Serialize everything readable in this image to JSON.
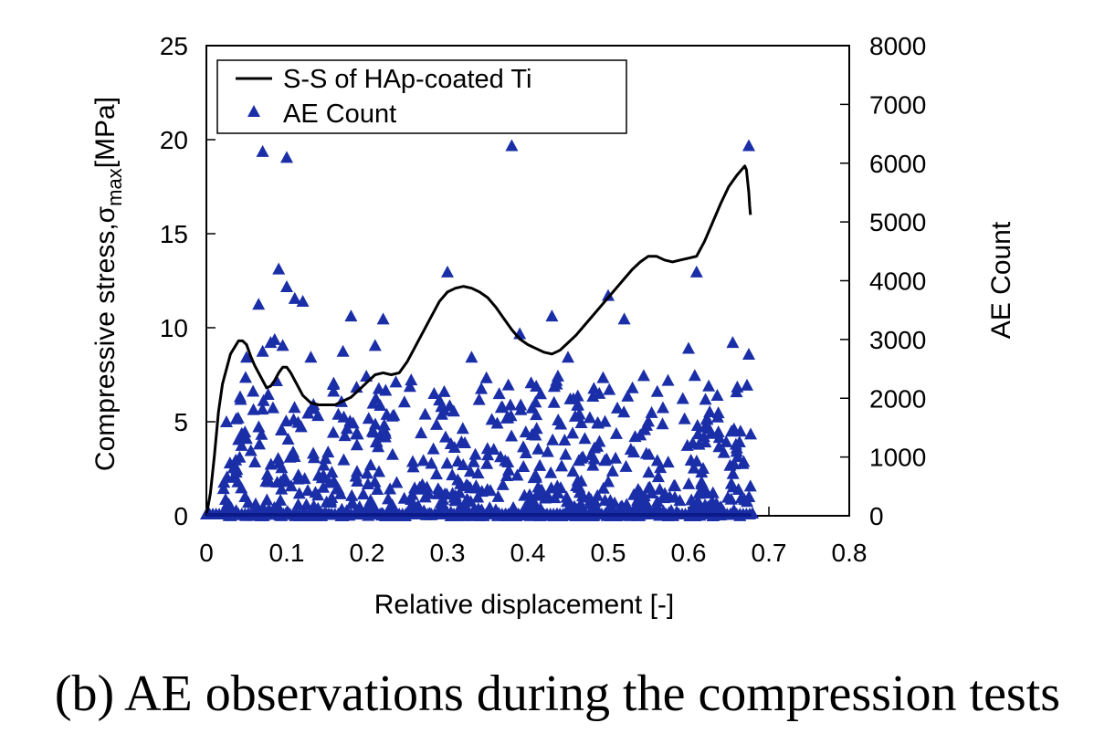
{
  "caption": "(b) AE observations during the compression tests",
  "chart_data": {
    "type": "line+scatter",
    "title": "",
    "xlabel": "Relative displacement [-]",
    "ylabel_left": {
      "main": "Compressive stress,σ",
      "sub": "max",
      "unit": "[MPa]"
    },
    "ylabel_right": "AE Count",
    "xlim": [
      0,
      0.8
    ],
    "ylim_left": [
      0,
      25
    ],
    "ylim_right": [
      0,
      8000
    ],
    "xticks": [
      "0",
      "0.1",
      "0.2",
      "0.3",
      "0.4",
      "0.5",
      "0.6",
      "0.7",
      "0.8"
    ],
    "yticks_left": [
      "0",
      "5",
      "10",
      "15",
      "20",
      "25"
    ],
    "yticks_right": [
      "0",
      "1000",
      "2000",
      "3000",
      "4000",
      "5000",
      "6000",
      "7000",
      "8000"
    ],
    "grid": false,
    "legend_position": "top-left",
    "series": [
      {
        "name": "S-S of HAp-coated Ti",
        "type": "line",
        "axis": "left",
        "color": "#000000",
        "x": [
          0.0,
          0.005,
          0.01,
          0.015,
          0.02,
          0.03,
          0.04,
          0.045,
          0.05,
          0.055,
          0.06,
          0.07,
          0.075,
          0.08,
          0.085,
          0.09,
          0.095,
          0.1,
          0.105,
          0.11,
          0.115,
          0.12,
          0.13,
          0.14,
          0.15,
          0.16,
          0.17,
          0.18,
          0.19,
          0.2,
          0.21,
          0.22,
          0.23,
          0.24,
          0.25,
          0.26,
          0.27,
          0.28,
          0.29,
          0.3,
          0.31,
          0.32,
          0.33,
          0.34,
          0.35,
          0.36,
          0.37,
          0.38,
          0.39,
          0.4,
          0.41,
          0.42,
          0.43,
          0.44,
          0.45,
          0.46,
          0.47,
          0.48,
          0.49,
          0.5,
          0.51,
          0.52,
          0.53,
          0.54,
          0.55,
          0.56,
          0.57,
          0.58,
          0.59,
          0.6,
          0.61,
          0.62,
          0.63,
          0.64,
          0.65,
          0.66,
          0.67,
          0.672,
          0.675,
          0.676,
          0.677
        ],
        "values": [
          0.0,
          1.2,
          3.2,
          5.5,
          7.0,
          8.6,
          9.3,
          9.3,
          9.1,
          8.5,
          8.0,
          7.2,
          6.8,
          6.9,
          7.2,
          7.6,
          7.9,
          7.9,
          7.6,
          7.2,
          6.8,
          6.4,
          6.0,
          5.9,
          5.9,
          5.9,
          6.1,
          6.3,
          6.7,
          7.1,
          7.5,
          7.6,
          7.5,
          7.6,
          8.2,
          9.0,
          9.8,
          10.6,
          11.4,
          11.9,
          12.1,
          12.2,
          12.1,
          11.9,
          11.6,
          11.1,
          10.5,
          9.9,
          9.4,
          9.1,
          8.9,
          8.7,
          8.6,
          8.8,
          9.2,
          9.6,
          10.1,
          10.6,
          11.1,
          11.6,
          12.1,
          12.6,
          13.1,
          13.5,
          13.8,
          13.8,
          13.6,
          13.5,
          13.6,
          13.7,
          13.8,
          14.6,
          15.6,
          16.6,
          17.5,
          18.1,
          18.6,
          18.4,
          17.2,
          16.5,
          16.0
        ]
      },
      {
        "name": "AE Count",
        "type": "scatter",
        "marker": "triangle",
        "axis": "right",
        "color": "#1a2ea8",
        "x": [
          0.07,
          0.1,
          0.38,
          0.675,
          0.09,
          0.3,
          0.61,
          0.065,
          0.11,
          0.52,
          0.5,
          0.18,
          0.22,
          0.43,
          0.1,
          0.12,
          0.095,
          0.39,
          0.07,
          0.13,
          0.08,
          0.085,
          0.21,
          0.17,
          0.05,
          0.025,
          0.04,
          0.33,
          0.45,
          0.6,
          0.655,
          0.675
        ],
        "values": [
          6200,
          6100,
          6300,
          6300,
          4200,
          4150,
          4150,
          3600,
          3700,
          3350,
          3750,
          3400,
          3350,
          3400,
          3900,
          3650,
          2900,
          3100,
          2800,
          2700,
          2950,
          3000,
          2900,
          2800,
          2700,
          1600,
          1300,
          2700,
          2700,
          2850,
          2950,
          2750
        ]
      }
    ],
    "noise_band": {
      "x_range": [
        0.02,
        0.68
      ],
      "count_max": 2400,
      "note": "dense cloud of AE triangles along the baseline"
    }
  }
}
